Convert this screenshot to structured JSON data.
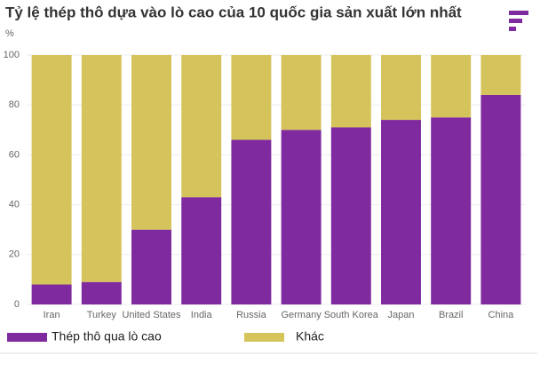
{
  "chart_data": {
    "type": "stacked-bar",
    "title": "Tỷ lệ thép thô dựa vào lò cao của 10 quốc gia sản xuất lớn nhất",
    "y_label": "%",
    "categories": [
      "Iran",
      "Turkey",
      "United States",
      "India",
      "Russia",
      "Germany",
      "South Korea",
      "Japan",
      "Brazil",
      "China"
    ],
    "series": [
      {
        "name": "Thép thô qua lò cao",
        "color": "#7f2a9e",
        "values": [
          8,
          9,
          30,
          43,
          66,
          70,
          71,
          74,
          75,
          84
        ]
      },
      {
        "name": "Khác",
        "color": "#d5c35c",
        "values": [
          92,
          91,
          70,
          57,
          34,
          30,
          29,
          26,
          25,
          16
        ]
      }
    ],
    "ylim": [
      0,
      100
    ],
    "yticks": [
      0,
      20,
      40,
      60,
      80,
      100
    ],
    "grid": true
  }
}
